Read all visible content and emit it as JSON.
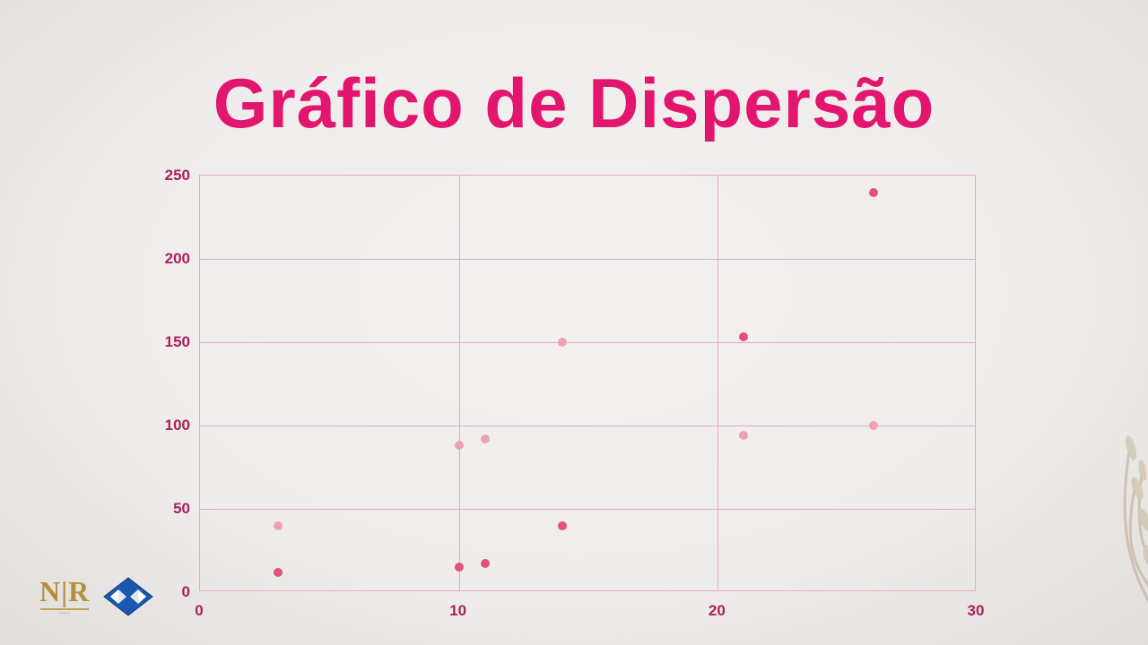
{
  "title": "Gráfico de Dispersão",
  "colors": {
    "background": "#efedeb",
    "title": "#e2156f",
    "grid": "#e4aac2",
    "tick_label": "#ab2059",
    "series_dark": "#e2517e",
    "series_light": "#efa0b6",
    "logo_gold": "#b3913c",
    "logo_blue": "#1a57ae"
  },
  "chart_data": {
    "type": "scatter",
    "title": "Gráfico de Dispersão",
    "xlabel": "",
    "ylabel": "",
    "xlim": [
      0,
      30
    ],
    "ylim": [
      0,
      250
    ],
    "x_ticks": [
      0,
      10,
      20,
      30
    ],
    "y_ticks": [
      0,
      50,
      100,
      150,
      200,
      250
    ],
    "grid": true,
    "legend_position": "none",
    "series": [
      {
        "name": "dark-pink-series",
        "color": "#e2517e",
        "points": [
          [
            3,
            12
          ],
          [
            10,
            15
          ],
          [
            11,
            17
          ],
          [
            14,
            40
          ],
          [
            21,
            153
          ],
          [
            26,
            240
          ]
        ]
      },
      {
        "name": "light-pink-series",
        "color": "#efa0b6",
        "points": [
          [
            3,
            40
          ],
          [
            10,
            88
          ],
          [
            11,
            92
          ],
          [
            14,
            150
          ],
          [
            21,
            94
          ],
          [
            26,
            100
          ]
        ]
      }
    ]
  },
  "logos": {
    "nr_letters": "N|R"
  }
}
